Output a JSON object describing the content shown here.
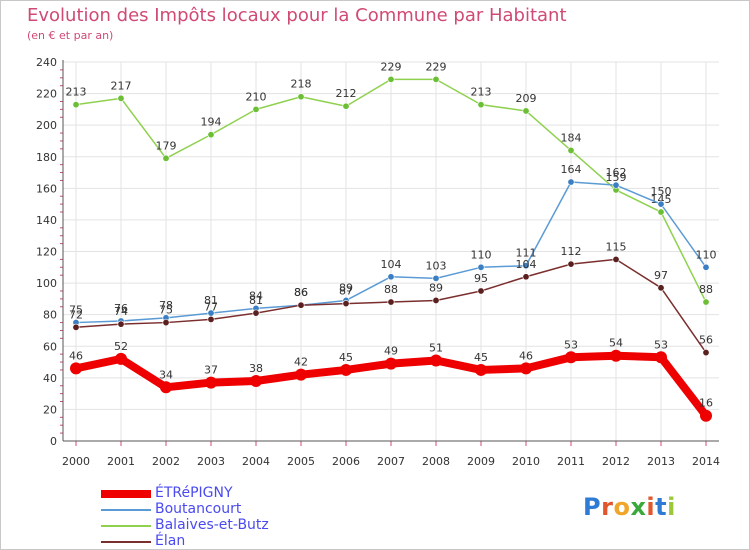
{
  "header": {
    "title": "Evolution des Impôts locaux pour la Commune par Habitant",
    "subtitle": "(en € et par an)"
  },
  "logo": {
    "text": "Proxiti",
    "letters": [
      "P",
      "r",
      "o",
      "x",
      "i",
      "t",
      "i"
    ],
    "colors": [
      "#2e7bd6",
      "#e0562d",
      "#f0a52b",
      "#3aa83a",
      "#e0562d",
      "#2e7bd6",
      "#9ac83a"
    ]
  },
  "chart_data": {
    "type": "line",
    "title": "Evolution des Impôts locaux pour la Commune par Habitant",
    "subtitle": "(en € et par an)",
    "xlabel": "",
    "ylabel": "",
    "x": [
      "2000",
      "2001",
      "2002",
      "2003",
      "2004",
      "2005",
      "2006",
      "2007",
      "2008",
      "2009",
      "2010",
      "2011",
      "2012",
      "2013",
      "2014"
    ],
    "ylim": [
      0,
      240
    ],
    "yticks": [
      0,
      20,
      40,
      60,
      80,
      100,
      120,
      140,
      160,
      180,
      200,
      220,
      240
    ],
    "grid": true,
    "legend_position": "bottom-left",
    "series": [
      {
        "name": "Balaives-et-Butz",
        "color": "#8fd14f",
        "marker": "#6cbf35",
        "width": 1.5,
        "values": [
          213,
          217,
          179,
          194,
          210,
          218,
          212,
          229,
          229,
          213,
          209,
          184,
          159,
          145,
          88
        ]
      },
      {
        "name": "Boutancourt",
        "color": "#5b9bd5",
        "marker": "#3a7fc4",
        "width": 1.5,
        "values": [
          75,
          76,
          78,
          81,
          84,
          86,
          89,
          104,
          103,
          110,
          111,
          164,
          162,
          150,
          110
        ]
      },
      {
        "name": "Élan",
        "color": "#7b2e2e",
        "marker": "#5a1f1f",
        "width": 1.5,
        "values": [
          72,
          74,
          75,
          77,
          81,
          86,
          87,
          88,
          89,
          95,
          104,
          112,
          115,
          97,
          56
        ]
      },
      {
        "name": "ÉTRéPIGNY",
        "color": "#ee0000",
        "marker": "#ee0000",
        "width": 8,
        "values": [
          46,
          52,
          34,
          37,
          38,
          42,
          45,
          49,
          51,
          45,
          46,
          53,
          54,
          53,
          16
        ]
      }
    ]
  },
  "legend": [
    {
      "name": "ÉTRéPIGNY",
      "color": "#ee0000",
      "label_color": "#4a4af0",
      "thickness": 8
    },
    {
      "name": "Boutancourt",
      "color": "#5b9bd5",
      "label_color": "#4a4af0",
      "thickness": 2
    },
    {
      "name": "Balaives-et-Butz",
      "color": "#8fd14f",
      "label_color": "#4a4af0",
      "thickness": 2
    },
    {
      "name": "Élan",
      "color": "#7b2e2e",
      "label_color": "#4a4af0",
      "thickness": 2
    }
  ]
}
